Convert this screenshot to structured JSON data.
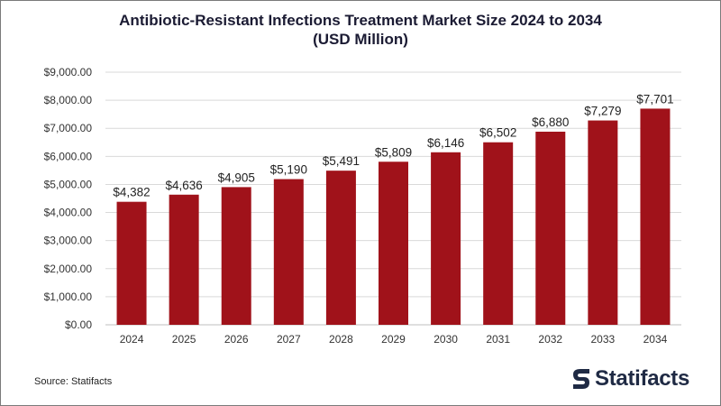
{
  "title_line1": "Antibiotic-Resistant Infections Treatment Market Size 2024 to 2034",
  "title_line2": "(USD Million)",
  "source": "Source: Statifacts",
  "brand": "Statifacts",
  "colors": {
    "bar": "#a0121a",
    "title": "#1b1b33",
    "grid": "#d9d9d9",
    "brand": "#1f2a44"
  },
  "chart_data": {
    "type": "bar",
    "categories": [
      "2024",
      "2025",
      "2026",
      "2027",
      "2028",
      "2029",
      "2030",
      "2031",
      "2032",
      "2033",
      "2034"
    ],
    "values": [
      4382,
      4636,
      4905,
      5190,
      5491,
      5809,
      6146,
      6502,
      6880,
      7279,
      7701
    ],
    "value_labels": [
      "$4,382",
      "$4,636",
      "$4,905",
      "$5,190",
      "$5,491",
      "$5,809",
      "$6,146",
      "$6,502",
      "$6,880",
      "$7,279",
      "$7,701"
    ],
    "y_ticks": [
      0,
      1000,
      2000,
      3000,
      4000,
      5000,
      6000,
      7000,
      8000,
      9000
    ],
    "y_tick_labels": [
      "$0.00",
      "$1,000.00",
      "$2,000.00",
      "$3,000.00",
      "$4,000.00",
      "$5,000.00",
      "$6,000.00",
      "$7,000.00",
      "$8,000.00",
      "$9,000.00"
    ],
    "ylim": [
      0,
      9000
    ],
    "xlabel": "",
    "ylabel": "",
    "grid": true,
    "legend": false
  }
}
